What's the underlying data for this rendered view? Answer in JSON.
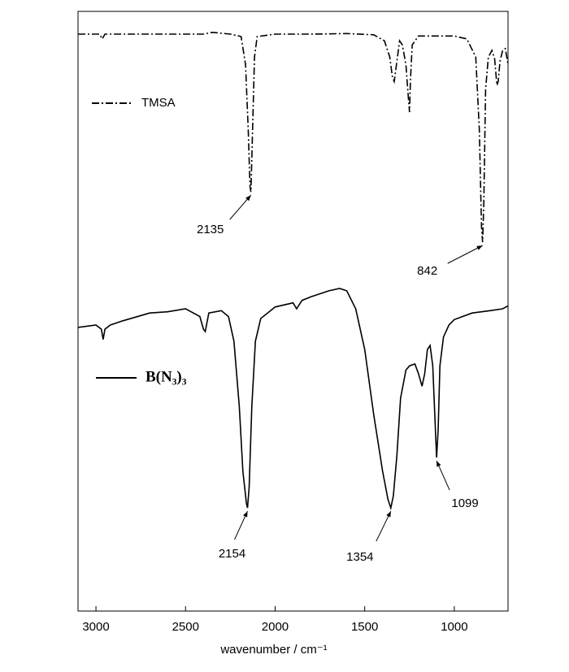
{
  "chart_data": {
    "type": "line",
    "x_label": "wavenumber / cm⁻¹",
    "xlim": [
      3100,
      700
    ],
    "xticks": [
      3000,
      2500,
      2000,
      1500,
      1000
    ],
    "ylim": [
      0,
      100
    ],
    "series": [
      {
        "name": "TMSA",
        "color": "#000000",
        "line_style": "dashdot",
        "x": [
          3100,
          2980,
          2965,
          2950,
          2700,
          2400,
          2350,
          2250,
          2190,
          2165,
          2150,
          2140,
          2135,
          2128,
          2115,
          2100,
          2000,
          1800,
          1600,
          1450,
          1390,
          1360,
          1345,
          1335,
          1320,
          1305,
          1290,
          1270,
          1255,
          1250,
          1245,
          1235,
          1200,
          1000,
          930,
          880,
          860,
          848,
          842,
          835,
          825,
          810,
          790,
          775,
          762,
          755,
          745,
          730,
          715,
          700
        ],
        "values": [
          96.2,
          96.2,
          95.4,
          96.2,
          96.2,
          96.2,
          96.5,
          96.2,
          95.8,
          91.1,
          80.2,
          70.7,
          69.9,
          77.5,
          92.4,
          95.8,
          96.2,
          96.2,
          96.3,
          96.1,
          95.1,
          92.4,
          89.0,
          88.3,
          91.7,
          95.1,
          94.4,
          91.1,
          85.0,
          83.2,
          88.3,
          94.4,
          95.9,
          95.9,
          95.4,
          92.4,
          80.2,
          64.0,
          61.5,
          68.0,
          87.0,
          92.4,
          93.5,
          92.1,
          87.7,
          88.3,
          91.7,
          93.5,
          93.8,
          91.1
        ],
        "annotations": [
          2135,
          842
        ]
      },
      {
        "name": "B(N₃)₃",
        "color": "#000000",
        "line_style": "solid",
        "x": [
          3100,
          3000,
          2970,
          2960,
          2950,
          2920,
          2850,
          2700,
          2600,
          2500,
          2420,
          2400,
          2390,
          2370,
          2300,
          2260,
          2230,
          2200,
          2180,
          2160,
          2154,
          2145,
          2130,
          2110,
          2080,
          2000,
          1900,
          1880,
          1850,
          1800,
          1700,
          1640,
          1600,
          1550,
          1500,
          1450,
          1400,
          1370,
          1354,
          1340,
          1320,
          1300,
          1270,
          1250,
          1220,
          1200,
          1180,
          1165,
          1150,
          1135,
          1120,
          1105,
          1099,
          1090,
          1080,
          1060,
          1030,
          1000,
          900,
          800,
          730,
          700
        ],
        "values": [
          47.3,
          47.7,
          47.0,
          45.3,
          47.0,
          47.7,
          48.4,
          49.7,
          49.9,
          50.4,
          49.1,
          47.0,
          46.6,
          49.7,
          50.1,
          49.1,
          45.0,
          34.1,
          23.3,
          17.9,
          17.2,
          20.6,
          34.1,
          45.0,
          48.8,
          50.7,
          51.4,
          50.4,
          51.8,
          52.4,
          53.4,
          53.8,
          53.4,
          50.4,
          43.6,
          32.8,
          23.3,
          18.6,
          17.2,
          19.2,
          26.0,
          35.5,
          40.2,
          40.9,
          41.2,
          39.6,
          37.5,
          39.6,
          43.6,
          44.3,
          40.9,
          30.1,
          25.6,
          30.1,
          40.9,
          45.7,
          47.7,
          48.6,
          49.7,
          50.1,
          50.4,
          50.9
        ],
        "annotations": [
          2154,
          1354,
          1099
        ]
      }
    ]
  }
}
